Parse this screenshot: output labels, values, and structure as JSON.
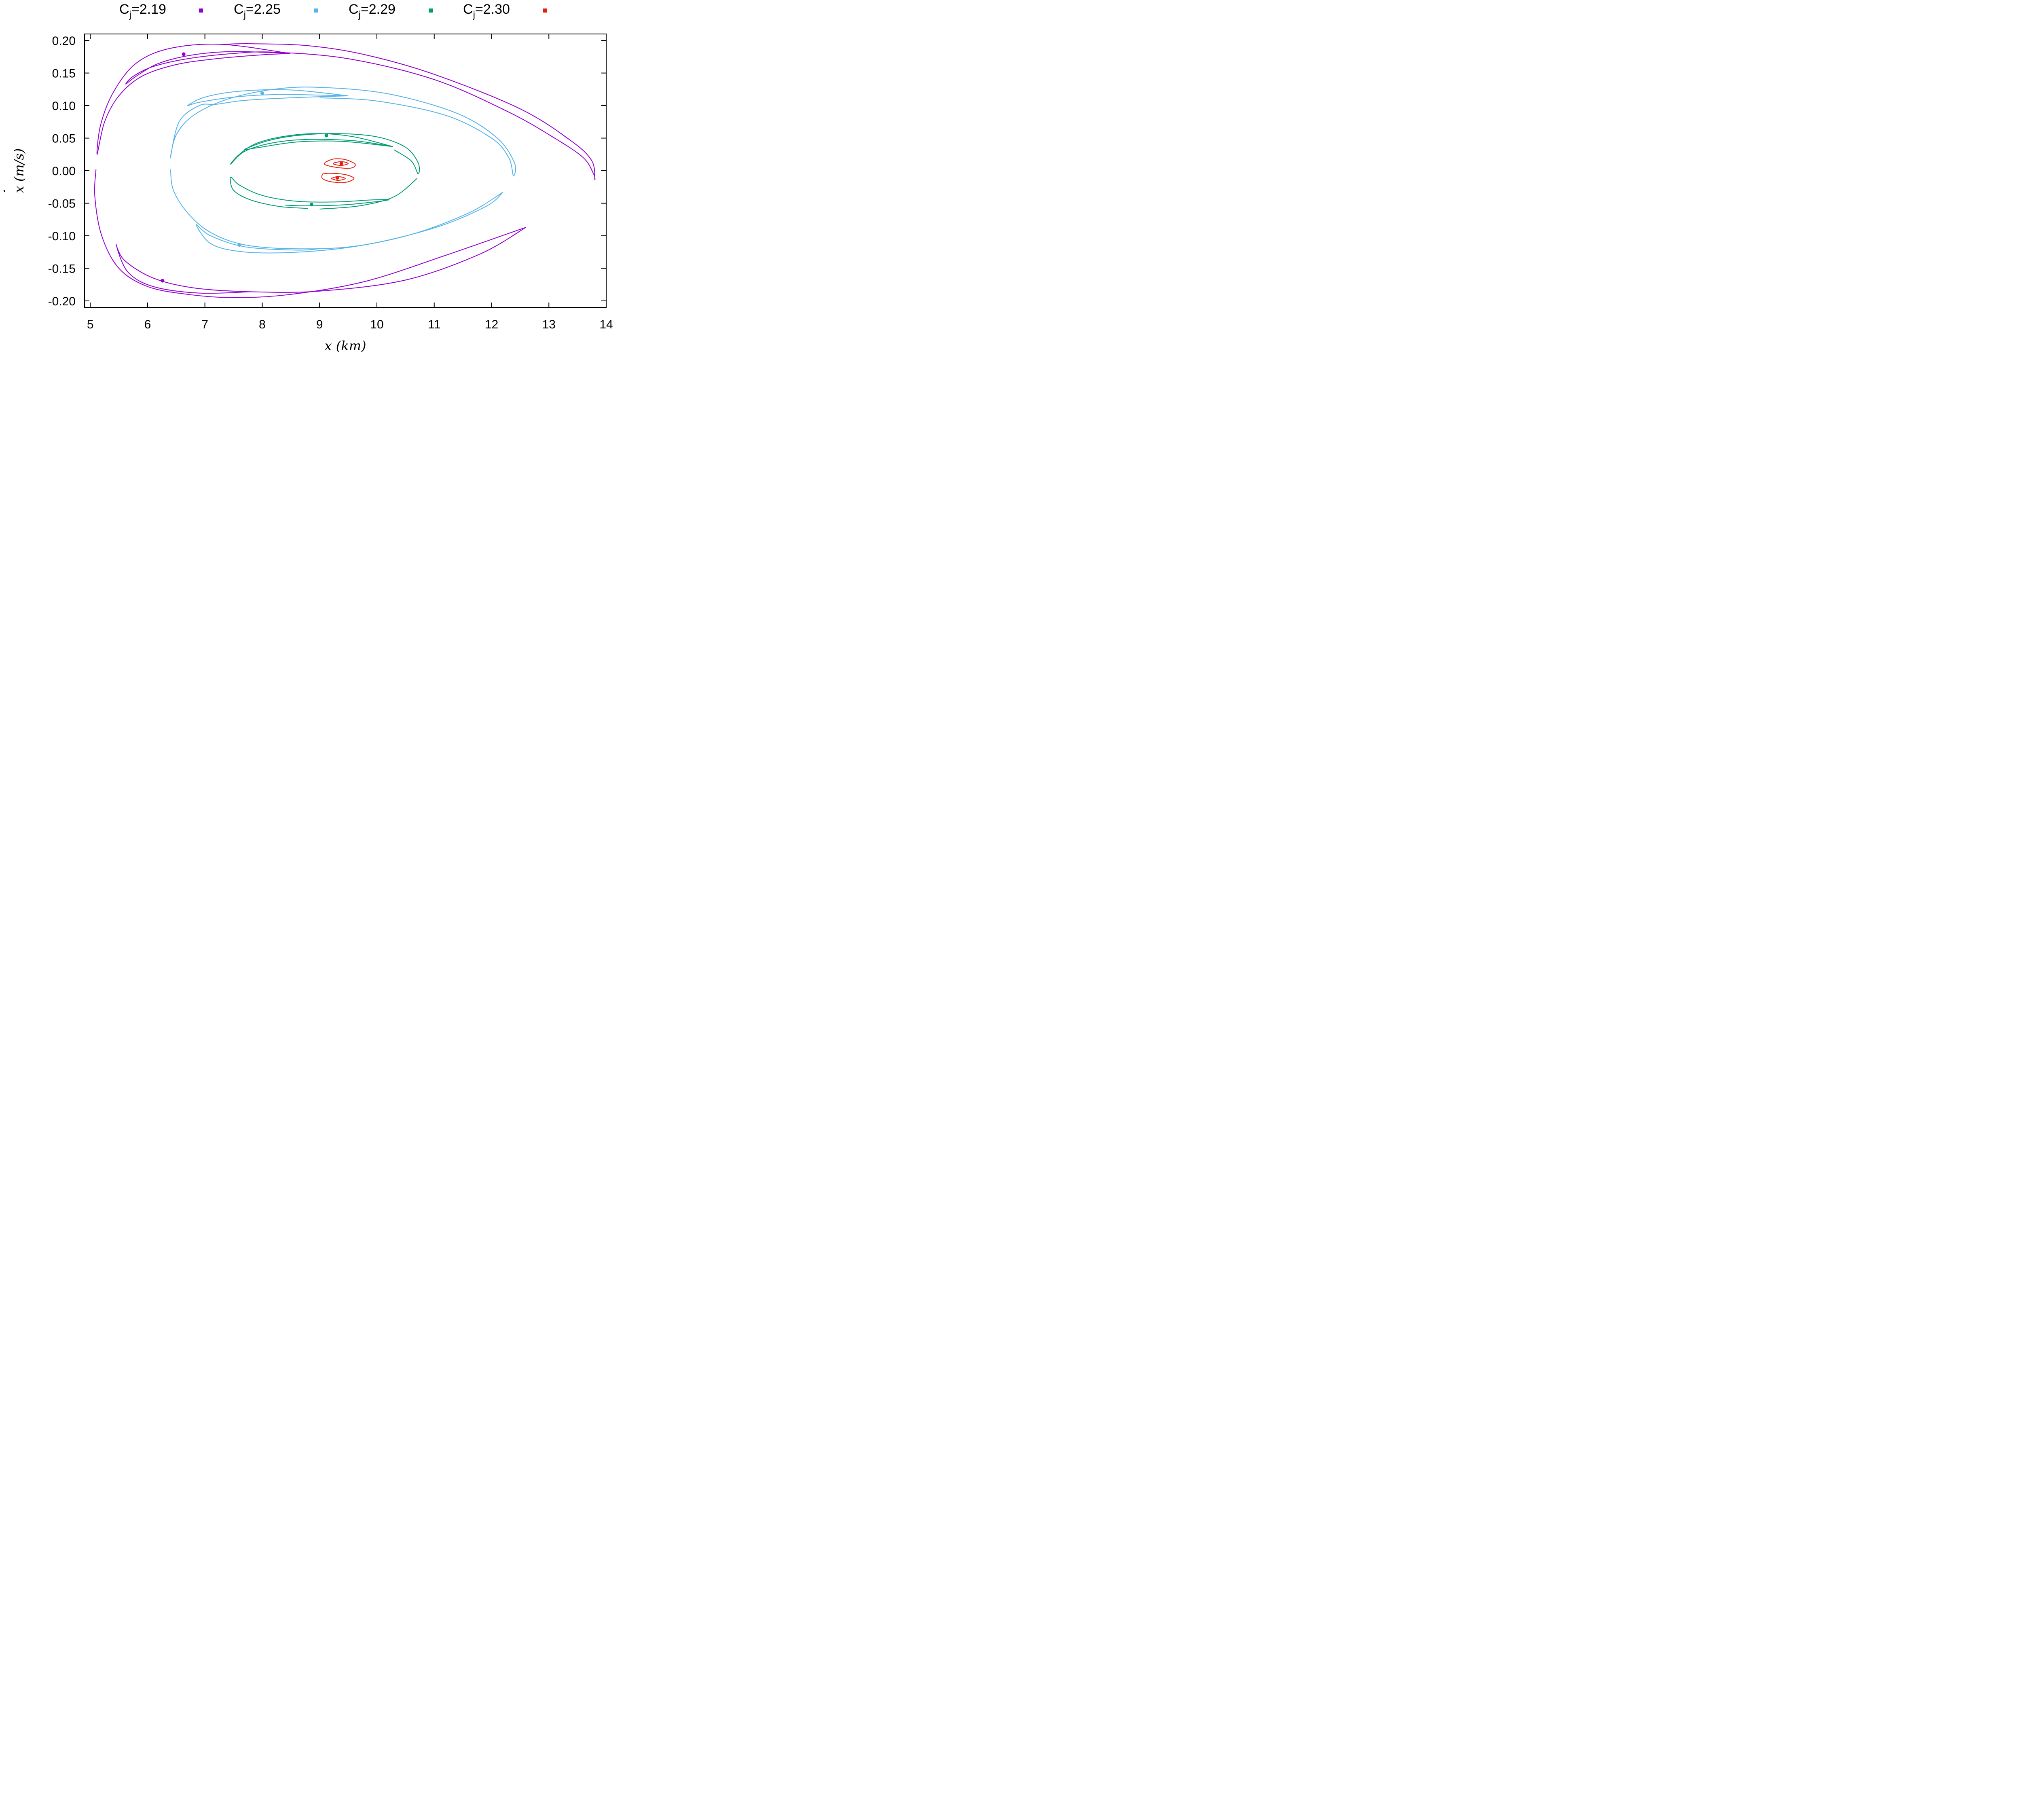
{
  "chart_data": {
    "type": "scatter",
    "title": "",
    "xlabel": "x (km)",
    "ylabel": "x (m/s)",
    "ylabel_dot": "·",
    "xlim": [
      4.9,
      14.0
    ],
    "ylim": [
      -0.21,
      0.21
    ],
    "xticks": [
      5,
      6,
      7,
      8,
      9,
      10,
      11,
      12,
      13,
      14
    ],
    "yticks": [
      0.2,
      0.15,
      0.1,
      0.05,
      0.0,
      -0.05,
      -0.1,
      -0.15,
      -0.2
    ],
    "xtick_labels": [
      "5",
      "6",
      "7",
      "8",
      "9",
      "10",
      "11",
      "12",
      "13",
      "14"
    ],
    "ytick_labels": [
      "0.20",
      "0.15",
      "0.10",
      "0.05",
      "0.00",
      "-0.05",
      "-0.10",
      "-0.15",
      "-0.20"
    ],
    "legend": {
      "placement": "top-outside",
      "entries": [
        {
          "prefix": "C",
          "sub": "j",
          "suffix": "=2.19",
          "color": "#9400d3"
        },
        {
          "prefix": "C",
          "sub": "j",
          "suffix": "=2.25",
          "color": "#56b4e9"
        },
        {
          "prefix": "C",
          "sub": "j",
          "suffix": "=2.29",
          "color": "#009e73"
        },
        {
          "prefix": "C",
          "sub": "j",
          "suffix": "=2.30",
          "color": "#e51e10"
        }
      ]
    },
    "series": [
      {
        "name": "Cj=2.19",
        "color": "#9400d3",
        "points": [
          [
            6.63,
            0.179
          ],
          [
            6.26,
            -0.169
          ]
        ],
        "curves": [
          [
            [
              8.49,
              0.18
            ],
            [
              7.3,
              0.194
            ],
            [
              6.4,
              0.188
            ],
            [
              5.8,
              0.165
            ],
            [
              5.4,
              0.12
            ],
            [
              5.18,
              0.07
            ],
            [
              5.12,
              0.025
            ],
            [
              5.25,
              0.075
            ],
            [
              5.5,
              0.115
            ],
            [
              5.9,
              0.145
            ],
            [
              6.5,
              0.163
            ],
            [
              7.2,
              0.172
            ],
            [
              8.0,
              0.178
            ],
            [
              8.49,
              0.18
            ]
          ],
          [
            [
              8.49,
              0.18
            ],
            [
              7.5,
              0.183
            ],
            [
              6.8,
              0.178
            ],
            [
              6.2,
              0.165
            ],
            [
              5.8,
              0.145
            ],
            [
              5.62,
              0.133
            ],
            [
              5.75,
              0.145
            ],
            [
              6.1,
              0.16
            ],
            [
              6.7,
              0.172
            ],
            [
              7.5,
              0.18
            ],
            [
              8.2,
              0.182
            ],
            [
              9.5,
              0.172
            ],
            [
              11.0,
              0.14
            ],
            [
              12.3,
              0.09
            ],
            [
              13.1,
              0.05
            ],
            [
              13.6,
              0.02
            ],
            [
              13.78,
              -0.005
            ],
            [
              13.8,
              -0.013
            ],
            [
              13.75,
              0.015
            ],
            [
              13.4,
              0.045
            ],
            [
              12.5,
              0.095
            ],
            [
              11.0,
              0.148
            ],
            [
              9.8,
              0.178
            ],
            [
              8.8,
              0.192
            ],
            [
              7.8,
              0.195
            ],
            [
              7.3,
              0.194
            ]
          ],
          [
            [
              7.8,
              -0.186
            ],
            [
              6.9,
              -0.188
            ],
            [
              6.1,
              -0.178
            ],
            [
              5.65,
              -0.155
            ],
            [
              5.45,
              -0.113
            ],
            [
              5.6,
              -0.138
            ],
            [
              6.1,
              -0.165
            ],
            [
              6.8,
              -0.18
            ],
            [
              7.8,
              -0.186
            ],
            [
              9.0,
              -0.185
            ],
            [
              10.5,
              -0.168
            ],
            [
              11.8,
              -0.128
            ],
            [
              12.6,
              -0.087
            ]
          ],
          [
            [
              5.1,
              0.002
            ],
            [
              5.08,
              -0.04
            ],
            [
              5.2,
              -0.1
            ],
            [
              5.5,
              -0.15
            ],
            [
              6.0,
              -0.178
            ],
            [
              6.7,
              -0.19
            ],
            [
              7.5,
              -0.195
            ],
            [
              8.5,
              -0.19
            ],
            [
              9.8,
              -0.17
            ],
            [
              11.2,
              -0.13
            ],
            [
              12.6,
              -0.087
            ]
          ]
        ]
      },
      {
        "name": "Cj=2.25",
        "color": "#56b4e9",
        "points": [
          [
            8.0,
            0.119
          ],
          [
            7.6,
            -0.114
          ]
        ],
        "curves": [
          [
            [
              9.5,
              0.115
            ],
            [
              8.5,
              0.124
            ],
            [
              7.6,
              0.122
            ],
            [
              7.0,
              0.113
            ],
            [
              6.7,
              0.1
            ],
            [
              6.9,
              0.105
            ],
            [
              7.5,
              0.113
            ],
            [
              8.3,
              0.117
            ],
            [
              9.5,
              0.115
            ]
          ],
          [
            [
              9.5,
              0.115
            ],
            [
              8.5,
              0.112
            ],
            [
              7.7,
              0.108
            ],
            [
              7.2,
              0.102
            ],
            [
              6.9,
              0.1
            ],
            [
              6.55,
              0.075
            ],
            [
              6.4,
              0.02
            ],
            [
              6.5,
              0.055
            ],
            [
              6.8,
              0.085
            ],
            [
              7.4,
              0.11
            ],
            [
              8.2,
              0.125
            ],
            [
              9.0,
              0.128
            ],
            [
              10.2,
              0.118
            ],
            [
              11.4,
              0.088
            ],
            [
              12.1,
              0.05
            ],
            [
              12.4,
              0.012
            ],
            [
              12.38,
              -0.008
            ],
            [
              12.3,
              0.02
            ],
            [
              12.0,
              0.05
            ],
            [
              11.2,
              0.085
            ],
            [
              10.0,
              0.107
            ],
            [
              9.0,
              0.112
            ]
          ],
          [
            [
              6.4,
              0.002
            ],
            [
              6.45,
              -0.03
            ],
            [
              6.7,
              -0.065
            ],
            [
              7.1,
              -0.095
            ],
            [
              7.7,
              -0.114
            ],
            [
              8.6,
              -0.12
            ],
            [
              9.7,
              -0.115
            ],
            [
              11.0,
              -0.088
            ],
            [
              11.9,
              -0.055
            ],
            [
              12.2,
              -0.033
            ]
          ],
          [
            [
              12.2,
              -0.033
            ],
            [
              11.6,
              -0.065
            ],
            [
              10.6,
              -0.098
            ],
            [
              9.5,
              -0.118
            ],
            [
              8.4,
              -0.126
            ],
            [
              7.6,
              -0.124
            ],
            [
              7.1,
              -0.112
            ],
            [
              6.85,
              -0.083
            ],
            [
              7.1,
              -0.1
            ],
            [
              7.7,
              -0.117
            ],
            [
              8.6,
              -0.122
            ],
            [
              9.0,
              -0.12
            ]
          ]
        ]
      },
      {
        "name": "Cj=2.29",
        "color": "#009e73",
        "points": [
          [
            9.12,
            0.054
          ],
          [
            8.86,
            -0.052
          ]
        ],
        "curves": [
          [
            [
              10.28,
              0.037
            ],
            [
              9.6,
              0.052
            ],
            [
              9.0,
              0.057
            ],
            [
              8.4,
              0.053
            ],
            [
              7.9,
              0.042
            ],
            [
              7.6,
              0.025
            ],
            [
              7.45,
              0.01
            ],
            [
              7.7,
              0.03
            ],
            [
              8.2,
              0.043
            ],
            [
              8.8,
              0.048
            ],
            [
              9.6,
              0.046
            ],
            [
              10.28,
              0.037
            ]
          ],
          [
            [
              10.28,
              0.037
            ],
            [
              9.4,
              0.045
            ],
            [
              8.6,
              0.044
            ],
            [
              7.9,
              0.035
            ],
            [
              7.7,
              0.033
            ],
            [
              8.1,
              0.046
            ],
            [
              8.6,
              0.054
            ],
            [
              9.3,
              0.057
            ],
            [
              10.0,
              0.052
            ],
            [
              10.5,
              0.036
            ],
            [
              10.72,
              0.012
            ],
            [
              10.72,
              -0.005
            ],
            [
              10.6,
              0.015
            ],
            [
              10.3,
              0.032
            ]
          ],
          [
            [
              8.8,
              -0.058
            ],
            [
              8.3,
              -0.055
            ],
            [
              7.8,
              -0.045
            ],
            [
              7.5,
              -0.03
            ],
            [
              7.45,
              -0.01
            ],
            [
              7.6,
              -0.022
            ],
            [
              8.0,
              -0.038
            ],
            [
              8.6,
              -0.047
            ],
            [
              9.3,
              -0.048
            ],
            [
              9.9,
              -0.045
            ],
            [
              10.2,
              -0.045
            ],
            [
              9.5,
              -0.052
            ],
            [
              8.8,
              -0.054
            ],
            [
              8.4,
              -0.053
            ]
          ],
          [
            [
              9.0,
              -0.059
            ],
            [
              9.7,
              -0.054
            ],
            [
              10.3,
              -0.04
            ],
            [
              10.7,
              -0.012
            ]
          ]
        ]
      },
      {
        "name": "Cj=2.30",
        "color": "#e51e10",
        "points": [
          [
            9.38,
            0.011
          ],
          [
            9.31,
            -0.011
          ]
        ],
        "curves": [
          [
            [
              9.1,
              0.013
            ],
            [
              9.25,
              0.018
            ],
            [
              9.45,
              0.017
            ],
            [
              9.62,
              0.01
            ],
            [
              9.55,
              0.004
            ],
            [
              9.3,
              0.005
            ],
            [
              9.1,
              0.009
            ],
            [
              9.1,
              0.013
            ]
          ],
          [
            [
              9.25,
              0.012
            ],
            [
              9.38,
              0.014
            ],
            [
              9.5,
              0.011
            ],
            [
              9.38,
              0.008
            ],
            [
              9.25,
              0.01
            ],
            [
              9.25,
              0.012
            ]
          ],
          [
            [
              9.05,
              -0.005
            ],
            [
              9.2,
              -0.004
            ],
            [
              9.45,
              -0.006
            ],
            [
              9.6,
              -0.012
            ],
            [
              9.45,
              -0.018
            ],
            [
              9.2,
              -0.017
            ],
            [
              9.05,
              -0.012
            ],
            [
              9.05,
              -0.005
            ]
          ],
          [
            [
              9.2,
              -0.012
            ],
            [
              9.32,
              -0.009
            ],
            [
              9.45,
              -0.012
            ],
            [
              9.32,
              -0.015
            ],
            [
              9.2,
              -0.012
            ]
          ]
        ]
      }
    ]
  }
}
